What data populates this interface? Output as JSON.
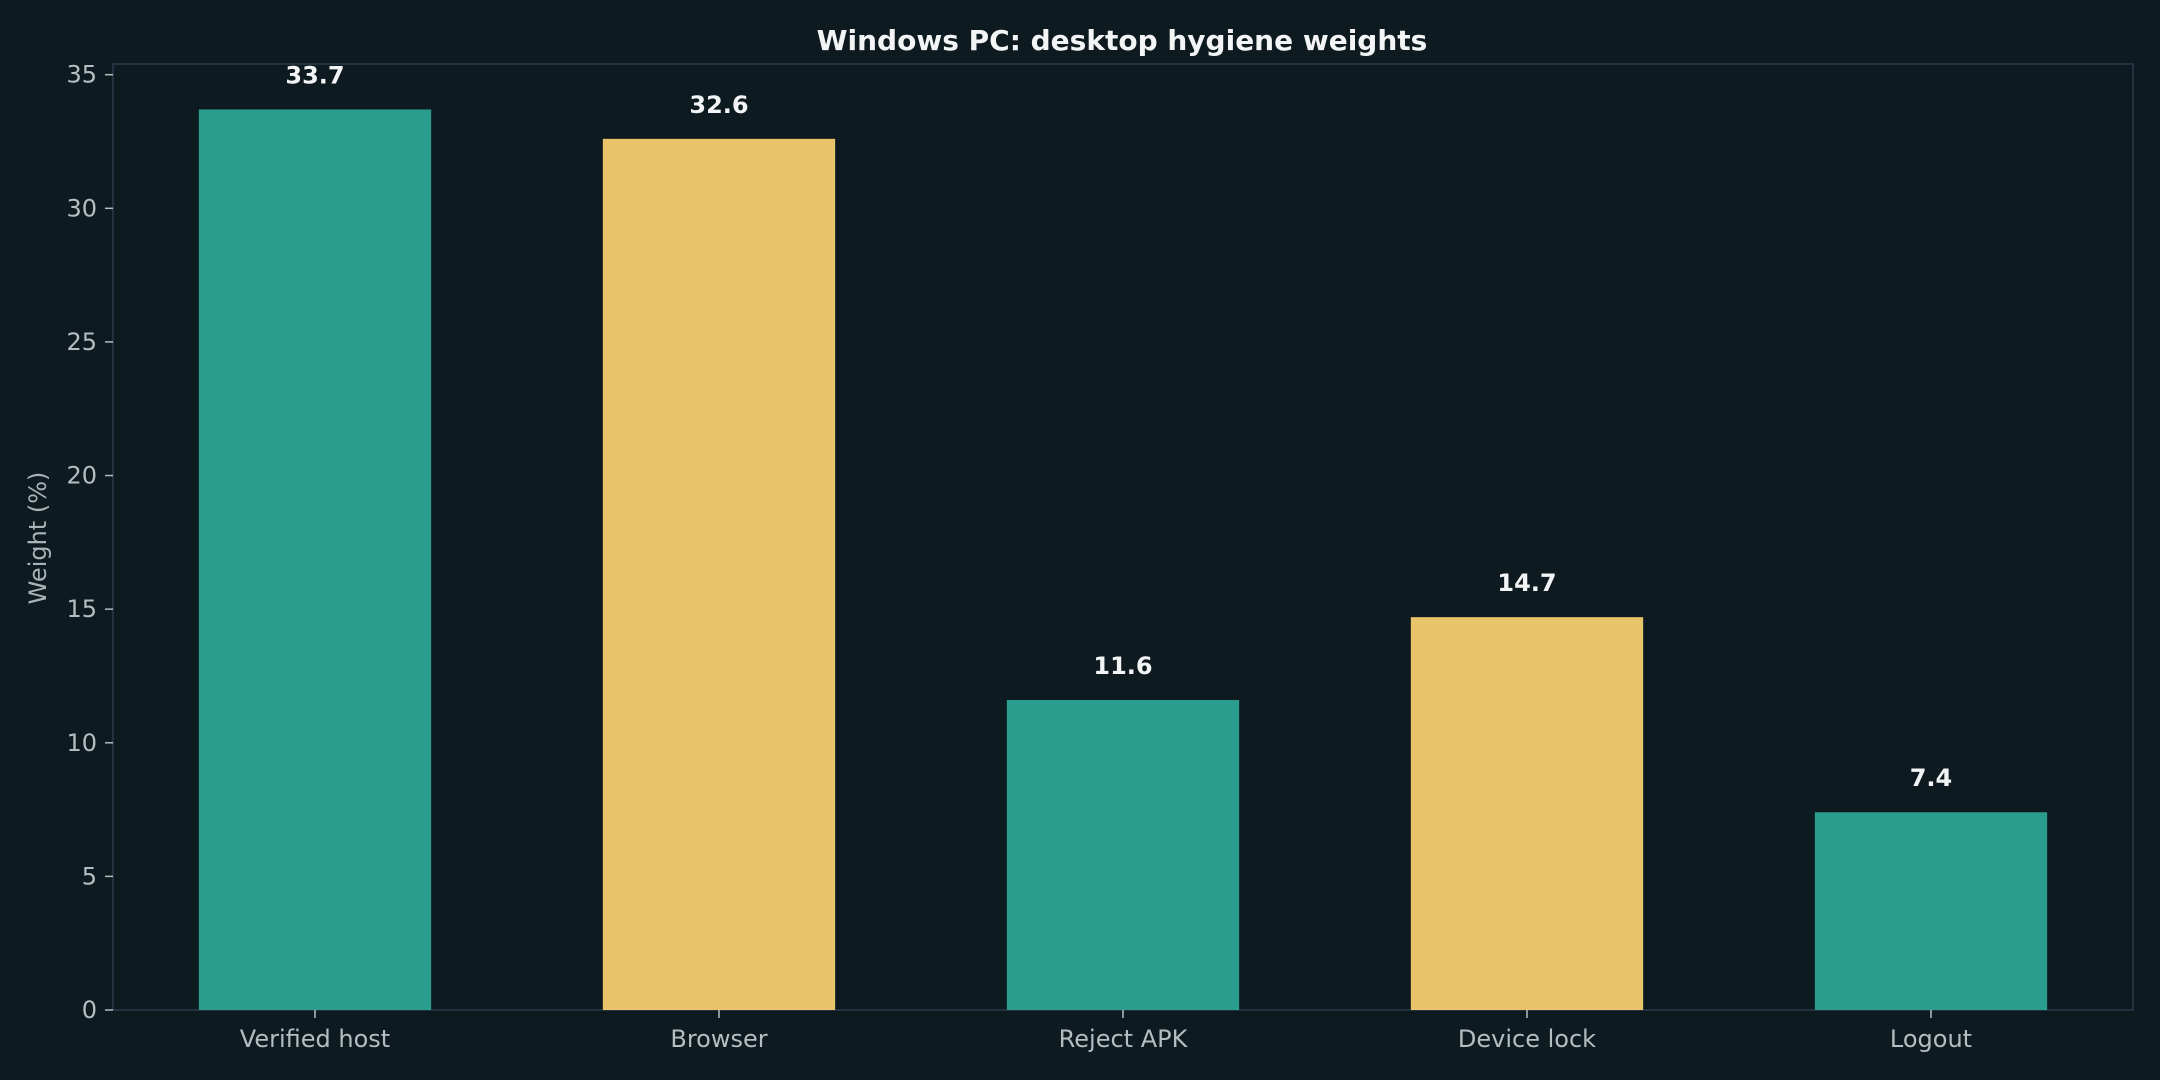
{
  "chart_data": {
    "type": "bar",
    "title": "Windows PC: desktop hygiene weights",
    "xlabel": "",
    "ylabel": "Weight (%)",
    "ylim": [
      0,
      35.4
    ],
    "yticks": [
      0,
      5,
      10,
      15,
      20,
      25,
      30,
      35
    ],
    "ytick_labels": [
      "0",
      "5",
      "10",
      "15",
      "20",
      "25",
      "30",
      "35"
    ],
    "categories": [
      "Verified host",
      "Browser",
      "Reject APK",
      "Device lock",
      "Logout"
    ],
    "values": [
      33.7,
      32.6,
      11.6,
      14.7,
      7.4
    ],
    "value_labels": [
      "33.7",
      "32.6",
      "11.6",
      "14.7",
      "7.4"
    ],
    "bar_colors": [
      "#2a9d8f",
      "#e9c46a",
      "#2a9d8f",
      "#e9c46a",
      "#2a9d8f"
    ],
    "grid": false,
    "legend": "none"
  },
  "colors": {
    "background": "#0d1a1f",
    "axis": "#2b3a4d",
    "tick_label": "#b4bec2",
    "text": "#f2f4f5"
  }
}
